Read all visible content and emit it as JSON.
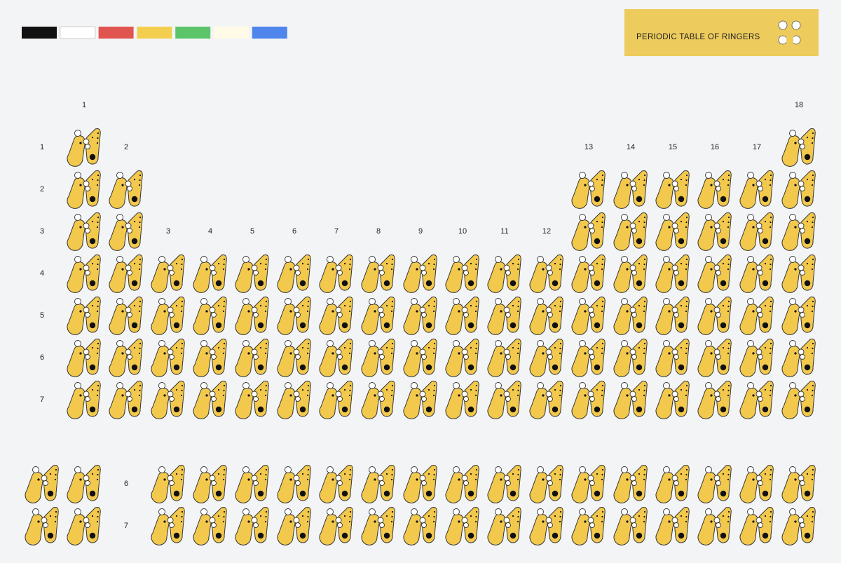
{
  "header": {
    "title": "PERIODIC TABLE OF RINGERS"
  },
  "palette": [
    "#111111",
    "#ffffff",
    "#e05550",
    "#f4cf4f",
    "#5cc46b",
    "#fffbe6",
    "#4f86ec"
  ],
  "groups": [
    1,
    2,
    3,
    4,
    5,
    6,
    7,
    8,
    9,
    10,
    11,
    12,
    13,
    14,
    15,
    16,
    17,
    18
  ],
  "periods": [
    1,
    2,
    3,
    4,
    5,
    6,
    7
  ],
  "extra_rows": [
    6,
    7
  ]
}
